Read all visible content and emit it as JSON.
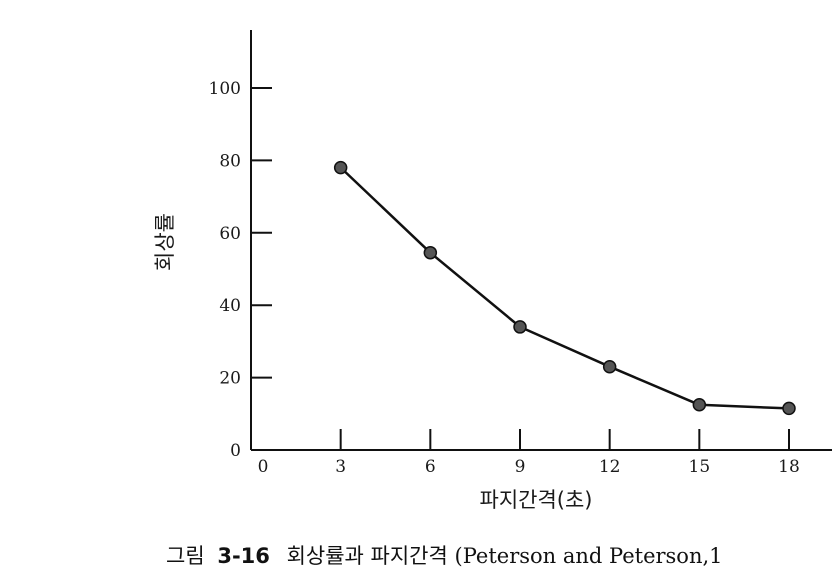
{
  "chart_data": {
    "type": "line",
    "xlabel": "파지간격(초)",
    "ylabel": "회상률",
    "x_ticks": [
      "0",
      "3",
      "6",
      "9",
      "12",
      "15",
      "18"
    ],
    "y_ticks": [
      "0",
      "20",
      "40",
      "60",
      "80",
      "100"
    ],
    "xlim": [
      0,
      18
    ],
    "ylim": [
      0,
      100
    ],
    "grid": false,
    "series": [
      {
        "x": [
          3,
          6,
          9,
          12,
          15,
          18
        ],
        "values": [
          78,
          54.5,
          34,
          23,
          12.5,
          11.5
        ]
      }
    ],
    "colors": {
      "line": "#111111",
      "marker": "#555555",
      "axis": "#111111"
    }
  },
  "caption": {
    "figure_label": "그림",
    "figure_number": "3-16",
    "text": "회상률과  파지간격",
    "reference": "(Peterson and Peterson,1"
  }
}
